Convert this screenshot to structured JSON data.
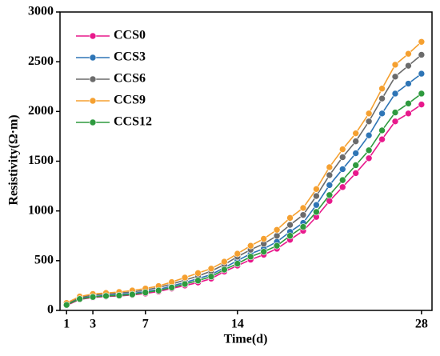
{
  "chart_data": {
    "type": "line",
    "xlabel": "Time(d)",
    "ylabel": "Resistivity(Ω·m)",
    "x": [
      1,
      2,
      3,
      4,
      5,
      6,
      7,
      8,
      9,
      10,
      11,
      12,
      13,
      14,
      15,
      16,
      17,
      18,
      19,
      20,
      21,
      22,
      23,
      24,
      25,
      26,
      27,
      28
    ],
    "series": [
      {
        "name": "CCS0",
        "color": "#e8198c",
        "values": [
          50,
          110,
          130,
          140,
          145,
          155,
          170,
          190,
          220,
          250,
          280,
          320,
          390,
          450,
          510,
          560,
          620,
          710,
          800,
          940,
          1100,
          1240,
          1380,
          1530,
          1720,
          1900,
          1980,
          2070
        ]
      },
      {
        "name": "CCS3",
        "color": "#2e75b6",
        "values": [
          60,
          120,
          140,
          150,
          160,
          170,
          190,
          210,
          245,
          280,
          320,
          360,
          430,
          500,
          570,
          620,
          690,
          790,
          880,
          1060,
          1260,
          1420,
          1580,
          1760,
          1980,
          2180,
          2280,
          2380
        ]
      },
      {
        "name": "CCS6",
        "color": "#6b6b6b",
        "values": [
          70,
          130,
          155,
          165,
          175,
          185,
          205,
          230,
          265,
          305,
          345,
          395,
          460,
          540,
          610,
          670,
          750,
          860,
          960,
          1150,
          1360,
          1540,
          1700,
          1900,
          2130,
          2350,
          2460,
          2570
        ]
      },
      {
        "name": "CCS9",
        "color": "#f5a030",
        "values": [
          75,
          140,
          165,
          175,
          185,
          200,
          220,
          245,
          285,
          330,
          375,
          420,
          490,
          570,
          650,
          720,
          810,
          930,
          1030,
          1220,
          1440,
          1620,
          1780,
          1980,
          2230,
          2470,
          2580,
          2700
        ]
      },
      {
        "name": "CCS12",
        "color": "#2e9a3e",
        "values": [
          55,
          115,
          135,
          145,
          150,
          160,
          180,
          200,
          230,
          265,
          300,
          340,
          410,
          470,
          540,
          590,
          650,
          750,
          840,
          990,
          1160,
          1310,
          1460,
          1610,
          1810,
          1990,
          2080,
          2180
        ]
      }
    ],
    "xlim": [
      0.5,
      28.8
    ],
    "xticks": [
      1,
      3,
      7,
      14,
      28
    ],
    "ylim": [
      0,
      3000
    ],
    "yticks": [
      0,
      500,
      1000,
      1500,
      2000,
      2500,
      3000
    ],
    "legend": "upper left"
  }
}
